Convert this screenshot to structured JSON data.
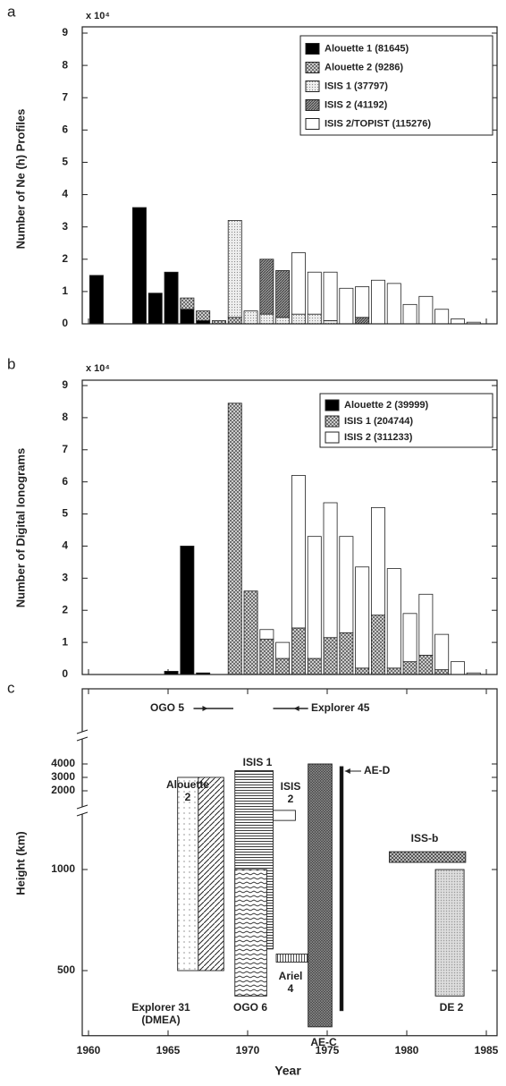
{
  "chart_data": [
    {
      "type": "stacked-bar",
      "label": "a",
      "multiplier": "x 10⁴",
      "ylabel": "Number of Ne (h) Profiles",
      "x": [
        1960.5,
        1963.2,
        1964.2,
        1965.2,
        1966.2,
        1967.2,
        1968.2,
        1969.2,
        1970.2,
        1971.2,
        1972.2,
        1973.2,
        1974.2,
        1975.2,
        1976.2,
        1977.2,
        1978.2,
        1979.2,
        1980.2,
        1981.2,
        1982.2,
        1983.2,
        1984.2
      ],
      "series": [
        {
          "name": "Alouette 1 (81645)",
          "color": "#000000",
          "values": [
            1.5,
            3.6,
            0.95,
            1.6,
            0.45,
            0.1,
            0,
            0,
            0,
            0,
            0,
            0,
            0,
            0,
            0,
            0,
            0,
            0,
            0,
            0,
            0,
            0,
            0
          ]
        },
        {
          "name": "Alouette 2 (9286)",
          "color": "#9a9a9a",
          "pattern": "cross",
          "values": [
            0,
            0,
            0,
            0,
            0.35,
            0.3,
            0.1,
            0.2,
            0,
            0,
            0,
            0,
            0,
            0,
            0,
            0,
            0,
            0,
            0,
            0,
            0,
            0,
            0
          ]
        },
        {
          "name": "ISIS 1 (37797)",
          "color": "#d0d0d0",
          "pattern": "dots",
          "values": [
            0,
            0,
            0,
            0,
            0,
            0,
            0,
            3.0,
            0.4,
            0.3,
            0.2,
            0.3,
            0.3,
            0.1,
            0,
            0,
            0,
            0,
            0,
            0,
            0,
            0,
            0
          ]
        },
        {
          "name": "ISIS 2 (41192)",
          "color": "#777777",
          "pattern": "dark",
          "values": [
            0,
            0,
            0,
            0,
            0,
            0,
            0,
            0,
            0,
            1.7,
            1.45,
            0,
            0,
            0,
            0,
            0.2,
            0,
            0,
            0,
            0,
            0,
            0,
            0
          ]
        },
        {
          "name": "ISIS 2/TOPIST (115276)",
          "color": "#ffffff",
          "values": [
            0,
            0,
            0,
            0,
            0,
            0,
            0,
            0,
            0,
            0,
            0,
            1.9,
            1.3,
            1.5,
            1.1,
            0.95,
            1.35,
            1.25,
            0.6,
            0.85,
            0.45,
            0.15,
            0.05
          ]
        }
      ],
      "xlim": [
        1960,
        1985
      ],
      "xticks": [
        1960,
        1965,
        1970,
        1975,
        1980,
        1985
      ],
      "ylim": [
        0,
        9
      ],
      "yticks": [
        0,
        1,
        2,
        3,
        4,
        5,
        6,
        7,
        8,
        9
      ],
      "legend": "upper right"
    },
    {
      "type": "stacked-bar",
      "label": "b",
      "multiplier": "x 10⁴",
      "ylabel": "Number of Digital Ionograms",
      "x": [
        1965.2,
        1966.2,
        1967.2,
        1968.2,
        1969.2,
        1970.2,
        1971.2,
        1972.2,
        1973.2,
        1974.2,
        1975.2,
        1976.2,
        1977.2,
        1978.2,
        1979.2,
        1980.2,
        1981.2,
        1982.2,
        1983.2,
        1984.2
      ],
      "series": [
        {
          "name": "Alouette 2 (39999)",
          "color": "#000000",
          "values": [
            0.1,
            4.0,
            0.05,
            0,
            0,
            0,
            0,
            0,
            0,
            0,
            0,
            0,
            0,
            0,
            0,
            0,
            0,
            0,
            0,
            0
          ]
        },
        {
          "name": "ISIS 1 (204744)",
          "color": "#9a9a9a",
          "pattern": "cross",
          "values": [
            0,
            0,
            0,
            0,
            8.45,
            2.6,
            1.1,
            0.5,
            1.45,
            0.5,
            1.15,
            1.3,
            0.2,
            1.85,
            0.2,
            0.4,
            0.6,
            0.15,
            0,
            0
          ]
        },
        {
          "name": "ISIS 2 (311233)",
          "color": "#ffffff",
          "values": [
            0,
            0,
            0,
            0,
            0,
            0,
            0.3,
            0.5,
            4.75,
            3.8,
            4.2,
            3.0,
            3.15,
            3.35,
            3.1,
            1.5,
            1.9,
            1.1,
            0.4,
            0.05
          ]
        }
      ],
      "xlim": [
        1960,
        1985
      ],
      "xticks": [
        1960,
        1965,
        1970,
        1975,
        1980,
        1985
      ],
      "ylim": [
        0,
        9
      ],
      "yticks": [
        0,
        1,
        2,
        3,
        4,
        5,
        6,
        7,
        8,
        9
      ],
      "legend": "upper right"
    },
    {
      "type": "timeline",
      "label": "c",
      "ylabel": "Height (km)",
      "xlabel": "Year",
      "yscale": "broken-log",
      "items": [
        {
          "label": [
            "Explorer 31",
            "(DMEA)"
          ],
          "start": 1965.6,
          "end": 1966.9,
          "low": 500,
          "high": 3000,
          "fill": "sdots"
        },
        {
          "label": [
            "Alouette",
            "2"
          ],
          "start": 1966.9,
          "end": 1968.5,
          "low": 500,
          "high": 3000,
          "fill": "diag"
        },
        {
          "label": [
            "ISIS 1"
          ],
          "start": 1969.2,
          "end": 1971.6,
          "low": 580,
          "high": 3500,
          "fill": "hlines"
        },
        {
          "label": [
            "OGO 6"
          ],
          "start": 1969.2,
          "end": 1971.2,
          "low": 420,
          "high": 1000,
          "fill": "wave"
        },
        {
          "label": [
            "ISIS",
            "2"
          ],
          "start": 1971.6,
          "end": 1973.0,
          "low": 1400,
          "high": 1500,
          "fill": "white"
        },
        {
          "label": [
            "Ariel",
            "4"
          ],
          "start": 1971.8,
          "end": 1973.8,
          "low": 530,
          "high": 560,
          "fill": "vlines"
        },
        {
          "label": [
            "AE-C"
          ],
          "start": 1973.8,
          "end": 1975.3,
          "low": 340,
          "high": 4000,
          "fill": "darkcross"
        },
        {
          "label": [
            "AE-D"
          ],
          "start": 1975.8,
          "end": 1976.0,
          "low": 380,
          "high": 3800,
          "fill": "black"
        },
        {
          "label": [
            "ISS-b"
          ],
          "start": 1978.9,
          "end": 1983.7,
          "low": 1050,
          "high": 1130,
          "fill": "checker"
        },
        {
          "label": [
            "DE 2"
          ],
          "start": 1981.8,
          "end": 1983.6,
          "low": 420,
          "high": 1000,
          "fill": "ldots"
        }
      ],
      "arrows": [
        {
          "label": "OGO 5",
          "start": 1966.6,
          "end": 1969.1
        },
        {
          "label": "Explorer 45",
          "start": 1971.6,
          "end": 1973.8
        }
      ],
      "xlim": [
        1960,
        1985
      ],
      "xticks": [
        1960,
        1965,
        1970,
        1975,
        1980,
        1985
      ],
      "ylim": [
        320,
        4400
      ],
      "yticks": [
        500,
        1000,
        2000,
        3000,
        4000
      ]
    }
  ]
}
